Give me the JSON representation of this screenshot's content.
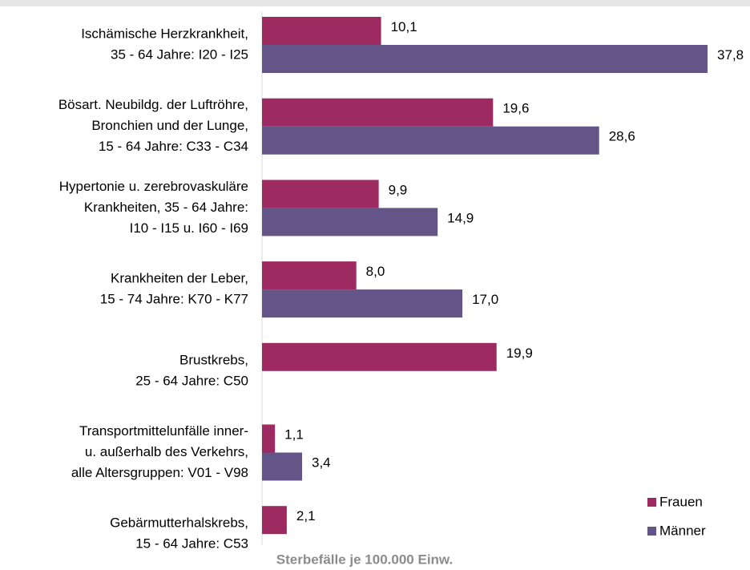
{
  "chart_data": {
    "type": "bar",
    "orientation": "horizontal",
    "x_label": "Sterbefälle je 100.000 Einw.",
    "categories": [
      [
        "Ischämische Herzkrankheit,",
        "35 - 64 Jahre:  I20 - I25"
      ],
      [
        "Bösart. Neubildg. der Luftröhre,",
        "Bronchien und der Lunge,",
        "15 - 64 Jahre:  C33 - C34"
      ],
      [
        "Hypertonie u. zerebrovaskuläre",
        "Krankheiten, 35 - 64 Jahre:",
        "I10 - I15 u. I60 - I69"
      ],
      [
        "Krankheiten der Leber,",
        "15 - 74 Jahre:  K70 - K77"
      ],
      [
        "Brustkrebs,",
        "25 - 64 Jahre:  C50"
      ],
      [
        "Transportmittelunfälle inner-",
        "u. außerhalb des Verkehrs,",
        "alle Altersgruppen:  V01 - V98"
      ],
      [
        "Gebärmutterhalskrebs,",
        "15 - 64 Jahre:  C53"
      ]
    ],
    "series": [
      {
        "name": "Frauen",
        "color": "#9e2a62",
        "values": [
          10.1,
          19.6,
          9.9,
          8.0,
          19.9,
          1.1,
          2.1
        ],
        "value_labels": [
          "10,1",
          "19,6",
          "9,9",
          "8,0",
          "19,9",
          "1,1",
          "2,1"
        ]
      },
      {
        "name": "Männer",
        "color": "#635587",
        "values": [
          37.8,
          28.6,
          14.9,
          17.0,
          null,
          3.4,
          null
        ],
        "value_labels": [
          "37,8",
          "28,6",
          "14,9",
          "17,0",
          null,
          "3,4",
          null
        ]
      }
    ],
    "legend": "bottom-right"
  }
}
